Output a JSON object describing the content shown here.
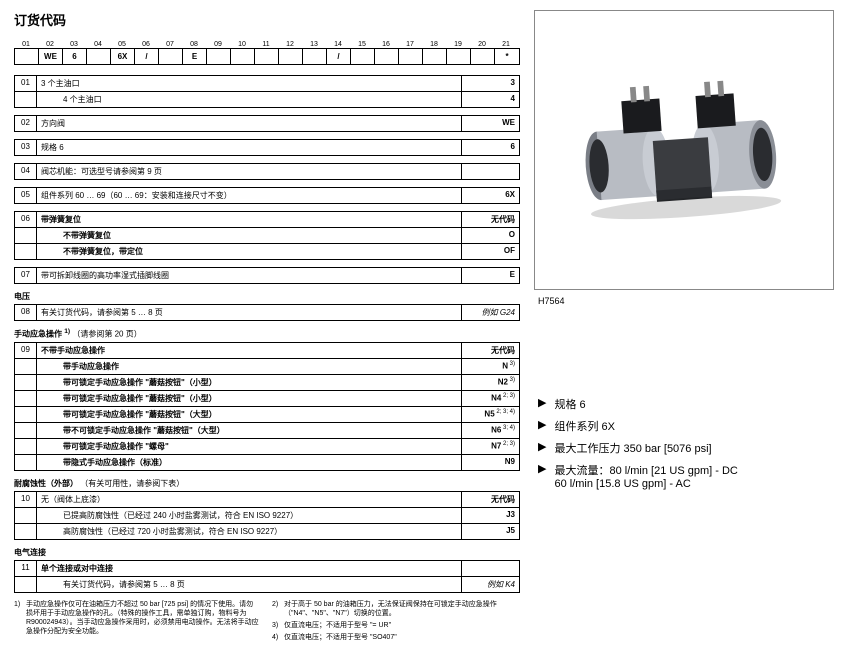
{
  "title": "订货代码",
  "ordercode": {
    "nums": [
      "01",
      "02",
      "03",
      "04",
      "05",
      "06",
      "07",
      "08",
      "09",
      "10",
      "11",
      "12",
      "13",
      "14",
      "15",
      "16",
      "17",
      "18",
      "19",
      "20",
      "21"
    ],
    "cells": [
      "",
      "WE",
      "6",
      "",
      "6X",
      "/",
      "",
      "E",
      "",
      "",
      "",
      "",
      "",
      "/",
      "",
      "",
      "",
      "",
      "",
      "",
      "*"
    ]
  },
  "sections": [
    {
      "rows": [
        {
          "num": "01",
          "desc": "3 个主油口",
          "code": "3"
        },
        {
          "num": "",
          "desc": "4 个主油口",
          "code": "4",
          "pad": true
        }
      ]
    },
    {
      "rows": [
        {
          "num": "02",
          "desc": "方向阀",
          "code": "WE"
        }
      ]
    },
    {
      "rows": [
        {
          "num": "03",
          "desc": "规格 6",
          "code": "6"
        }
      ]
    },
    {
      "rows": [
        {
          "num": "04",
          "desc": "阀芯机能：可选型号请参阅第 9 页",
          "code": ""
        }
      ]
    },
    {
      "rows": [
        {
          "num": "05",
          "desc": "组件系列 60 … 69（60 … 69：安装和连接尺寸不变）",
          "code": "6X"
        }
      ]
    },
    {
      "rows": [
        {
          "num": "06",
          "desc": "带弹簧复位",
          "code": "无代码",
          "bold": true
        },
        {
          "num": "",
          "desc": "不带弹簧复位",
          "code": "O",
          "pad": true,
          "bold": true
        },
        {
          "num": "",
          "desc": "不带弹簧复位，带定位",
          "code": "OF",
          "pad": true,
          "bold": true
        }
      ]
    },
    {
      "rows": [
        {
          "num": "07",
          "desc": "带可拆卸线圈的高功率湿式插脚线圈",
          "code": "E"
        }
      ]
    }
  ],
  "sec_voltage": {
    "title": "电压",
    "rows": [
      {
        "num": "08",
        "desc": "有关订货代码，请参阅第 5 … 8 页",
        "code": "例如 G24",
        "codeItalic": true
      }
    ]
  },
  "sec_manual": {
    "title": "手动应急操作 ",
    "titleSup": "1)",
    "titleRef": "（请参阅第 20 页）",
    "rows": [
      {
        "num": "09",
        "desc": "不带手动应急操作",
        "code": "无代码",
        "bold": true
      },
      {
        "num": "",
        "desc": "带手动应急操作",
        "code": "N",
        "sup": "3)",
        "pad": true,
        "bold": true
      },
      {
        "num": "",
        "desc": "带可锁定手动应急操作 \"蘑菇按钮\"（小型）",
        "code": "N2",
        "sup": "3)",
        "pad": true,
        "bold": true
      },
      {
        "num": "",
        "desc": "带可锁定手动应急操作 \"蘑菇按钮\"（小型）",
        "code": "N4",
        "sup": "2; 3)",
        "pad": true,
        "bold": true
      },
      {
        "num": "",
        "desc": "带可锁定手动应急操作 \"蘑菇按钮\"（大型）",
        "code": "N5",
        "sup": "2; 3; 4)",
        "pad": true,
        "bold": true
      },
      {
        "num": "",
        "desc": "带不可锁定手动应急操作 \"蘑菇按钮\"（大型）",
        "code": "N6",
        "sup": "3; 4)",
        "pad": true,
        "bold": true
      },
      "",
      {
        "num": "",
        "desc": "带可锁定手动应急操作 \"螺母\"",
        "code": "N7",
        "sup": "2; 3)",
        "pad": true,
        "bold": true
      },
      {
        "num": "",
        "desc": "带隐式手动应急操作（标准）",
        "code": "N9",
        "pad": true,
        "bold": true
      }
    ]
  },
  "sec_corr": {
    "title": "耐腐蚀性（外部）",
    "titleRef": "（有关可用性，请参阅下表）",
    "rows": [
      {
        "num": "10",
        "desc": "无（阀体上底漆）",
        "code": "无代码"
      },
      {
        "num": "",
        "desc": "已提高防腐蚀性（已经过 240 小时盐雾测试，符合 EN ISO 9227）",
        "code": "J3",
        "pad": true
      },
      {
        "num": "",
        "desc": "高防腐蚀性（已经过 720 小时盐雾测试，符合 EN ISO 9227）",
        "code": "J5",
        "pad": true
      }
    ]
  },
  "sec_elec": {
    "title": "电气连接",
    "rows": [
      {
        "num": "11",
        "desc": "单个连接或对中连接",
        "code": "",
        "bold": true
      },
      {
        "num": "",
        "desc": "有关订货代码，请参阅第 5 … 8 页",
        "code": "例如 K4",
        "codeItalic": true,
        "pad": true
      }
    ]
  },
  "footnotes": {
    "left": [
      {
        "n": "1)",
        "t": "手动应急操作仅可在油箱压力不超过 50 bar [725 psi] 的情况下使用。请勿损坏用于手动应急操作的孔。（特殊的操作工具，需单独订购，物料号为 R900024943）。当手动应急操作采用时，必须禁用电动操作。无法将手动应急操作分配为安全功能。"
      }
    ],
    "right": [
      {
        "n": "2)",
        "t": "对于高于 50 bar 的油箱压力，无法保证阀保持在可锁定手动应急操作（\"N4\"、\"N5\"、\"N7\"）切换的位置。"
      },
      {
        "n": "3)",
        "t": "仅直流电压；不适用于型号 \"= UR\""
      },
      {
        "n": "4)",
        "t": "仅直流电压；不适用于型号 \"SO407\""
      }
    ]
  },
  "image_caption": "H7564",
  "bullets": [
    "规格 6",
    "组件系列 6X",
    "最大工作压力 350 bar [5076 psi]",
    "最大流量：80 l/min [21 US gpm] - DC\n 60 l/min [15.8 US gpm] - AC"
  ],
  "svg": {
    "bodyFill": "#3a3c40",
    "coilFill": "#b8bcc3",
    "coilEdge": "#5a5e66",
    "plugFill": "#1a1b1e",
    "highlight": "#e8eaee"
  }
}
